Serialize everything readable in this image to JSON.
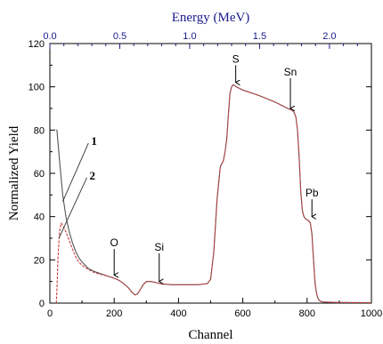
{
  "chart_data": {
    "type": "line",
    "title": "",
    "xlabel": "Channel",
    "ylabel": "Normalized Yield",
    "top_xlabel": "Energy (MeV)",
    "xlim": [
      0,
      1000
    ],
    "ylim": [
      0,
      120
    ],
    "xticks": [
      0,
      200,
      400,
      600,
      800,
      1000
    ],
    "yticks": [
      0,
      20,
      40,
      60,
      80,
      100,
      120
    ],
    "top_xlim": [
      0.0,
      2.3
    ],
    "top_xticks": [
      0.0,
      0.5,
      1.0,
      1.5,
      2.0
    ],
    "top_xtick_labels": [
      "0.0",
      "0.5",
      "1.0",
      "1.5",
      "2.0"
    ],
    "grid": false,
    "series": [
      {
        "name": "1",
        "color": "#555555",
        "x": [
          20,
          22,
          30,
          40,
          50,
          60,
          70,
          80,
          90,
          100,
          120,
          140,
          160,
          180,
          200,
          215,
          230,
          245,
          255,
          265,
          272,
          280,
          290,
          300,
          315,
          330,
          350,
          380,
          420,
          460,
          490,
          500,
          510,
          520,
          530,
          540,
          545,
          550,
          555,
          560,
          565,
          570,
          580,
          600,
          650,
          700,
          740,
          755,
          760,
          765,
          770,
          775,
          780,
          785,
          790,
          795,
          800,
          805,
          810,
          815,
          820,
          825,
          830,
          835,
          840,
          850,
          900,
          1000
        ],
        "y": [
          80,
          80,
          66,
          50,
          40,
          33,
          28,
          24,
          21,
          19,
          16,
          14.5,
          13.5,
          12.5,
          11.5,
          10.5,
          9,
          7,
          5,
          3.8,
          4.2,
          6,
          8.5,
          10,
          10,
          9.5,
          8.8,
          8.5,
          8.5,
          8.5,
          9,
          11,
          24,
          48,
          63,
          66,
          70,
          76,
          87,
          97,
          100,
          101,
          100,
          98.5,
          96,
          93,
          90,
          89,
          88,
          86,
          80,
          68,
          52,
          43,
          40,
          39,
          38.5,
          38,
          37,
          32,
          20,
          9,
          4,
          1.8,
          1,
          0.5,
          0.3,
          0.2
        ]
      },
      {
        "name": "2",
        "color": "#cc3a3a",
        "x": [
          20,
          22,
          25,
          30,
          35,
          40,
          50,
          60,
          70,
          80,
          90,
          100,
          120,
          140,
          160,
          180,
          200,
          215,
          230,
          245,
          255,
          265,
          272,
          280,
          290,
          300,
          315,
          330,
          350,
          380,
          420,
          460,
          490,
          500,
          510,
          520,
          530,
          540,
          545,
          550,
          555,
          560,
          565,
          570,
          580,
          600,
          650,
          700,
          740,
          755,
          760,
          765,
          770,
          775,
          780,
          785,
          790,
          795,
          800,
          805,
          810,
          815,
          820,
          825,
          830,
          835,
          840,
          850,
          900,
          1000
        ],
        "y": [
          0,
          6,
          20,
          33,
          37,
          36,
          33,
          29,
          25,
          21.5,
          19,
          17.5,
          15.5,
          14,
          13.2,
          12.5,
          11.5,
          10.5,
          9,
          7,
          5,
          3.8,
          4.2,
          6,
          8.5,
          10,
          10,
          9.5,
          8.8,
          8.5,
          8.5,
          8.5,
          9,
          11,
          24,
          48,
          63,
          66,
          70,
          76,
          87,
          97,
          100,
          101,
          100,
          98.5,
          96,
          93,
          90,
          89,
          88,
          86,
          80,
          68,
          52,
          43,
          40,
          39,
          38.5,
          38,
          37,
          32,
          20,
          9,
          4,
          1.8,
          1,
          0.5,
          0.3,
          0.2
        ]
      }
    ],
    "annotations": [
      {
        "text": "O",
        "arrow_x": 200,
        "arrow_y_top": 25,
        "arrow_y_bottom": 13
      },
      {
        "text": "Si",
        "arrow_x": 340,
        "arrow_y_top": 23,
        "arrow_y_bottom": 10
      },
      {
        "text": "S",
        "arrow_x": 578,
        "arrow_y_top": 110,
        "arrow_y_bottom": 102
      },
      {
        "text": "Sn",
        "arrow_x": 748,
        "arrow_y_top": 104,
        "arrow_y_bottom": 90
      },
      {
        "text": "Pb",
        "arrow_x": 815,
        "arrow_y_top": 48,
        "arrow_y_bottom": 40
      }
    ],
    "series_labels": [
      {
        "text": "1",
        "line_from": [
          40,
          47
        ],
        "line_to": [
          120,
          74
        ]
      },
      {
        "text": "2",
        "line_from": [
          28,
          30
        ],
        "line_to": [
          115,
          58
        ]
      }
    ]
  }
}
